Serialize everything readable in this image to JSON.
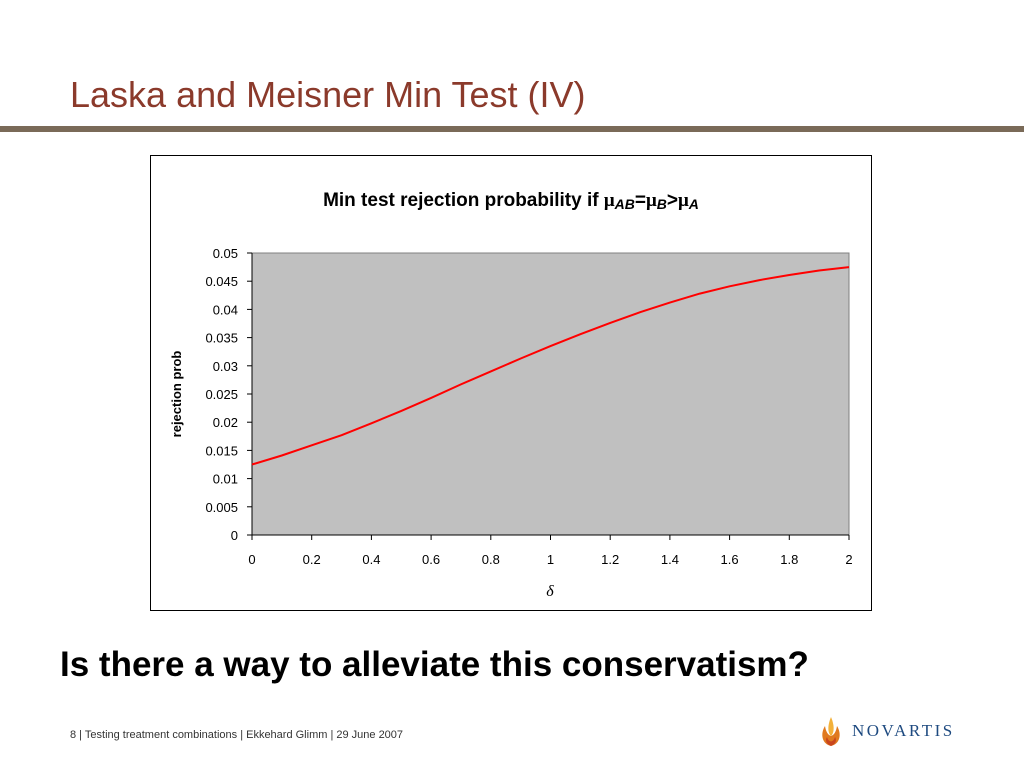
{
  "slide": {
    "title": "Laska and Meisner Min Test (IV)",
    "question": "Is there a way to alleviate this conservatism?",
    "footer": "8 | Testing treatment combinations | Ekkehard Glimm | 29 June 2007",
    "logo_text": "NOVARTIS"
  },
  "colors": {
    "title": "#8b3a2b",
    "rule": "#7a6a58",
    "plot_area": "#c0c0c0",
    "line": "#ff0000",
    "logo": "#1e4a80"
  },
  "chart_data": {
    "type": "line",
    "title_parts": [
      {
        "text": "Min test rejection probability if ",
        "font": "sans",
        "italic": false
      },
      {
        "text": "μ",
        "font": "serif",
        "italic": false
      },
      {
        "text": "AB",
        "font": "sans",
        "italic": true,
        "sub": true
      },
      {
        "text": "=",
        "font": "sans",
        "italic": false
      },
      {
        "text": "μ",
        "font": "serif",
        "italic": false
      },
      {
        "text": "B",
        "font": "sans",
        "italic": true,
        "sub": true
      },
      {
        "text": ">",
        "font": "sans",
        "italic": false
      },
      {
        "text": "μ",
        "font": "serif",
        "italic": false
      },
      {
        "text": "A",
        "font": "sans",
        "italic": true,
        "sub": true
      }
    ],
    "xlabel": "δ",
    "ylabel": "rejection prob",
    "xlim": [
      0,
      2
    ],
    "ylim": [
      0,
      0.05
    ],
    "xticks": [
      "0",
      "0.2",
      "0.4",
      "0.6",
      "0.8",
      "1",
      "1.2",
      "1.4",
      "1.6",
      "1.8",
      "2"
    ],
    "yticks": [
      "0",
      "0.005",
      "0.01",
      "0.015",
      "0.02",
      "0.025",
      "0.03",
      "0.035",
      "0.04",
      "0.045",
      "0.05"
    ],
    "grid": false,
    "legend": "none",
    "series": [
      {
        "x": [
          0,
          0.1,
          0.2,
          0.3,
          0.4,
          0.5,
          0.6,
          0.7,
          0.8,
          0.9,
          1.0,
          1.1,
          1.2,
          1.3,
          1.4,
          1.5,
          1.6,
          1.7,
          1.8,
          1.9,
          2.0
        ],
        "values": [
          0.0125,
          0.0141,
          0.0159,
          0.0177,
          0.0198,
          0.022,
          0.0243,
          0.0267,
          0.029,
          0.0313,
          0.0335,
          0.0356,
          0.0376,
          0.0395,
          0.0412,
          0.0428,
          0.0441,
          0.0452,
          0.0461,
          0.0469,
          0.0475
        ]
      }
    ]
  }
}
